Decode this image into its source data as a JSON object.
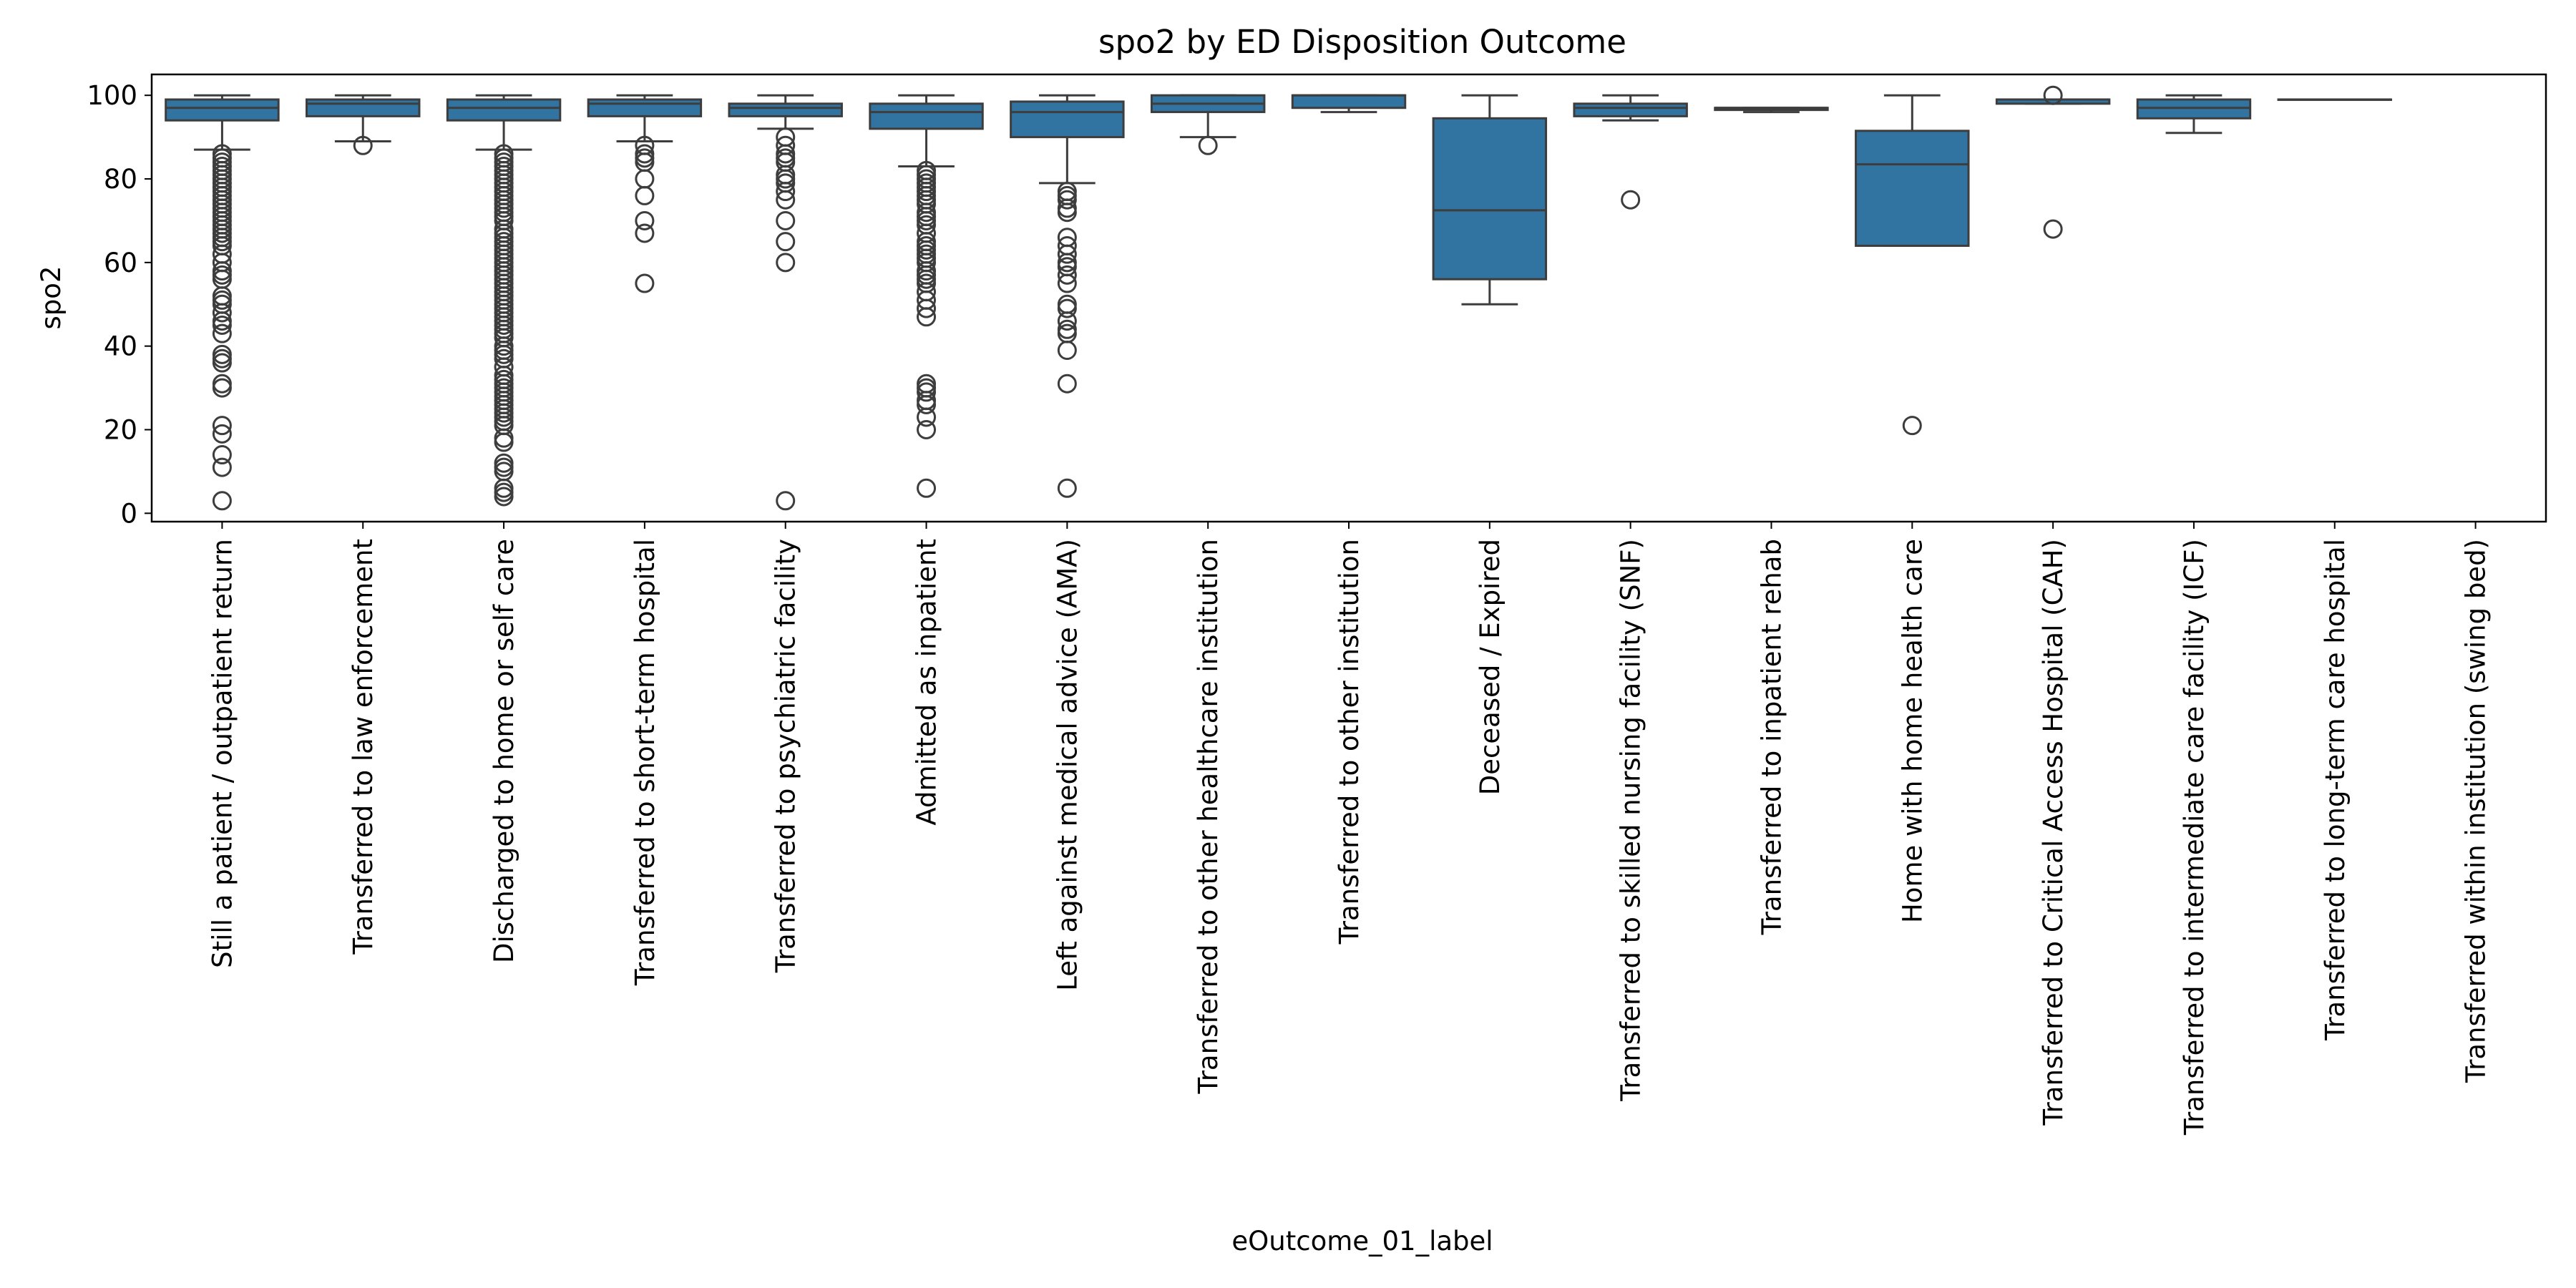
{
  "chart_data": {
    "type": "box",
    "title": "spo2 by ED Disposition Outcome",
    "xlabel": "eOutcome_01_label",
    "ylabel": "spo2",
    "ylim": [
      -2,
      105
    ],
    "yticks": [
      0,
      20,
      40,
      60,
      80,
      100
    ],
    "grid": false,
    "legend": "none",
    "box_color": "#3274a1",
    "edge_color": "#3d3d3d",
    "categories": [
      "Still a patient / outpatient return",
      "Transferred to law enforcement",
      "Discharged to home or self care",
      "Transferred to short-term hospital",
      "Transferred to psychiatric facility",
      "Admitted as inpatient",
      "Left against medical advice (AMA)",
      "Transferred to other healthcare institution",
      "Transferred to other institution",
      "Deceased / Expired",
      "Transferred to skilled nursing facility (SNF)",
      "Transferred to inpatient rehab",
      "Home with home health care",
      "Transferred to Critical Access Hospital (CAH)",
      "Transferred to intermediate care facility (ICF)",
      "Transferred to long-term care hospital",
      "Transferred within institution (swing bed)"
    ],
    "boxes": [
      {
        "whisker_low": 87,
        "q1": 94,
        "median": 97,
        "q3": 99,
        "whisker_high": 100,
        "outliers": [
          86,
          85,
          84,
          83,
          82,
          81,
          80,
          79,
          78,
          77,
          76,
          75,
          74,
          73,
          72,
          71,
          70,
          69,
          68,
          67,
          66,
          65,
          64,
          62,
          60,
          58,
          57,
          56,
          52,
          51,
          50,
          48,
          46,
          45,
          43,
          38,
          37,
          36,
          31,
          30,
          21,
          19,
          14,
          11,
          3
        ]
      },
      {
        "whisker_low": 89,
        "q1": 95,
        "median": 98,
        "q3": 99,
        "whisker_high": 100,
        "outliers": [
          88
        ]
      },
      {
        "whisker_low": 87,
        "q1": 94,
        "median": 97,
        "q3": 99,
        "whisker_high": 100,
        "outliers": [
          86,
          85,
          84,
          83,
          82,
          81,
          80,
          79,
          78,
          77,
          76,
          75,
          74,
          73,
          72,
          71,
          70,
          68,
          67,
          66,
          65,
          64,
          63,
          62,
          61,
          60,
          59,
          58,
          57,
          56,
          55,
          54,
          53,
          52,
          51,
          50,
          49,
          48,
          47,
          46,
          45,
          44,
          43,
          42,
          40,
          39,
          38,
          37,
          35,
          33,
          32,
          31,
          30,
          29,
          28,
          27,
          26,
          25,
          24,
          23,
          22,
          21,
          18,
          17,
          12,
          11,
          10,
          6,
          5,
          4
        ]
      },
      {
        "whisker_low": 89,
        "q1": 95,
        "median": 98,
        "q3": 99,
        "whisker_high": 100,
        "outliers": [
          88,
          86,
          85,
          84,
          80,
          76,
          70,
          67,
          55
        ]
      },
      {
        "whisker_low": 92,
        "q1": 95,
        "median": 97,
        "q3": 98,
        "whisker_high": 100,
        "outliers": [
          90,
          88,
          86,
          85,
          84,
          81,
          80,
          79,
          77,
          75,
          70,
          65,
          60,
          3
        ]
      },
      {
        "whisker_low": 83,
        "q1": 92,
        "median": 96,
        "q3": 98,
        "whisker_high": 100,
        "outliers": [
          82,
          81,
          80,
          79,
          78,
          77,
          76,
          75,
          74,
          72,
          71,
          70,
          69,
          67,
          65,
          64,
          63,
          62,
          61,
          60,
          58,
          57,
          56,
          55,
          53,
          51,
          49,
          47,
          31,
          30,
          29,
          27,
          26,
          23,
          20,
          6
        ]
      },
      {
        "whisker_low": 79,
        "q1": 90,
        "median": 96,
        "q3": 98.5,
        "whisker_high": 100,
        "outliers": [
          77,
          76,
          75,
          73,
          72,
          66,
          64,
          62,
          60,
          59,
          57,
          55,
          50,
          49,
          46,
          44,
          43,
          39,
          31,
          6
        ]
      },
      {
        "whisker_low": 90,
        "q1": 96,
        "median": 98,
        "q3": 100,
        "whisker_high": 100,
        "outliers": [
          88
        ]
      },
      {
        "whisker_low": 96,
        "q1": 97,
        "median": 100,
        "q3": 100,
        "whisker_high": 100,
        "outliers": []
      },
      {
        "whisker_low": 50,
        "q1": 56,
        "median": 72.5,
        "q3": 94.5,
        "whisker_high": 100,
        "outliers": []
      },
      {
        "whisker_low": 94,
        "q1": 95,
        "median": 97,
        "q3": 98,
        "whisker_high": 100,
        "outliers": [
          75
        ]
      },
      {
        "whisker_low": 96,
        "q1": 96.5,
        "median": 97,
        "q3": 97,
        "whisker_high": 97,
        "outliers": []
      },
      {
        "whisker_low": 64,
        "q1": 64,
        "median": 83.5,
        "q3": 91.5,
        "whisker_high": 100,
        "outliers": [
          21
        ]
      },
      {
        "whisker_low": 98,
        "q1": 98,
        "median": 99,
        "q3": 99,
        "whisker_high": 99,
        "outliers": [
          100,
          68
        ]
      },
      {
        "whisker_low": 91,
        "q1": 94.5,
        "median": 97,
        "q3": 99,
        "whisker_high": 100,
        "outliers": []
      },
      {
        "whisker_low": 99,
        "q1": 99,
        "median": 99,
        "q3": 99,
        "whisker_high": 99,
        "outliers": []
      },
      null
    ]
  }
}
